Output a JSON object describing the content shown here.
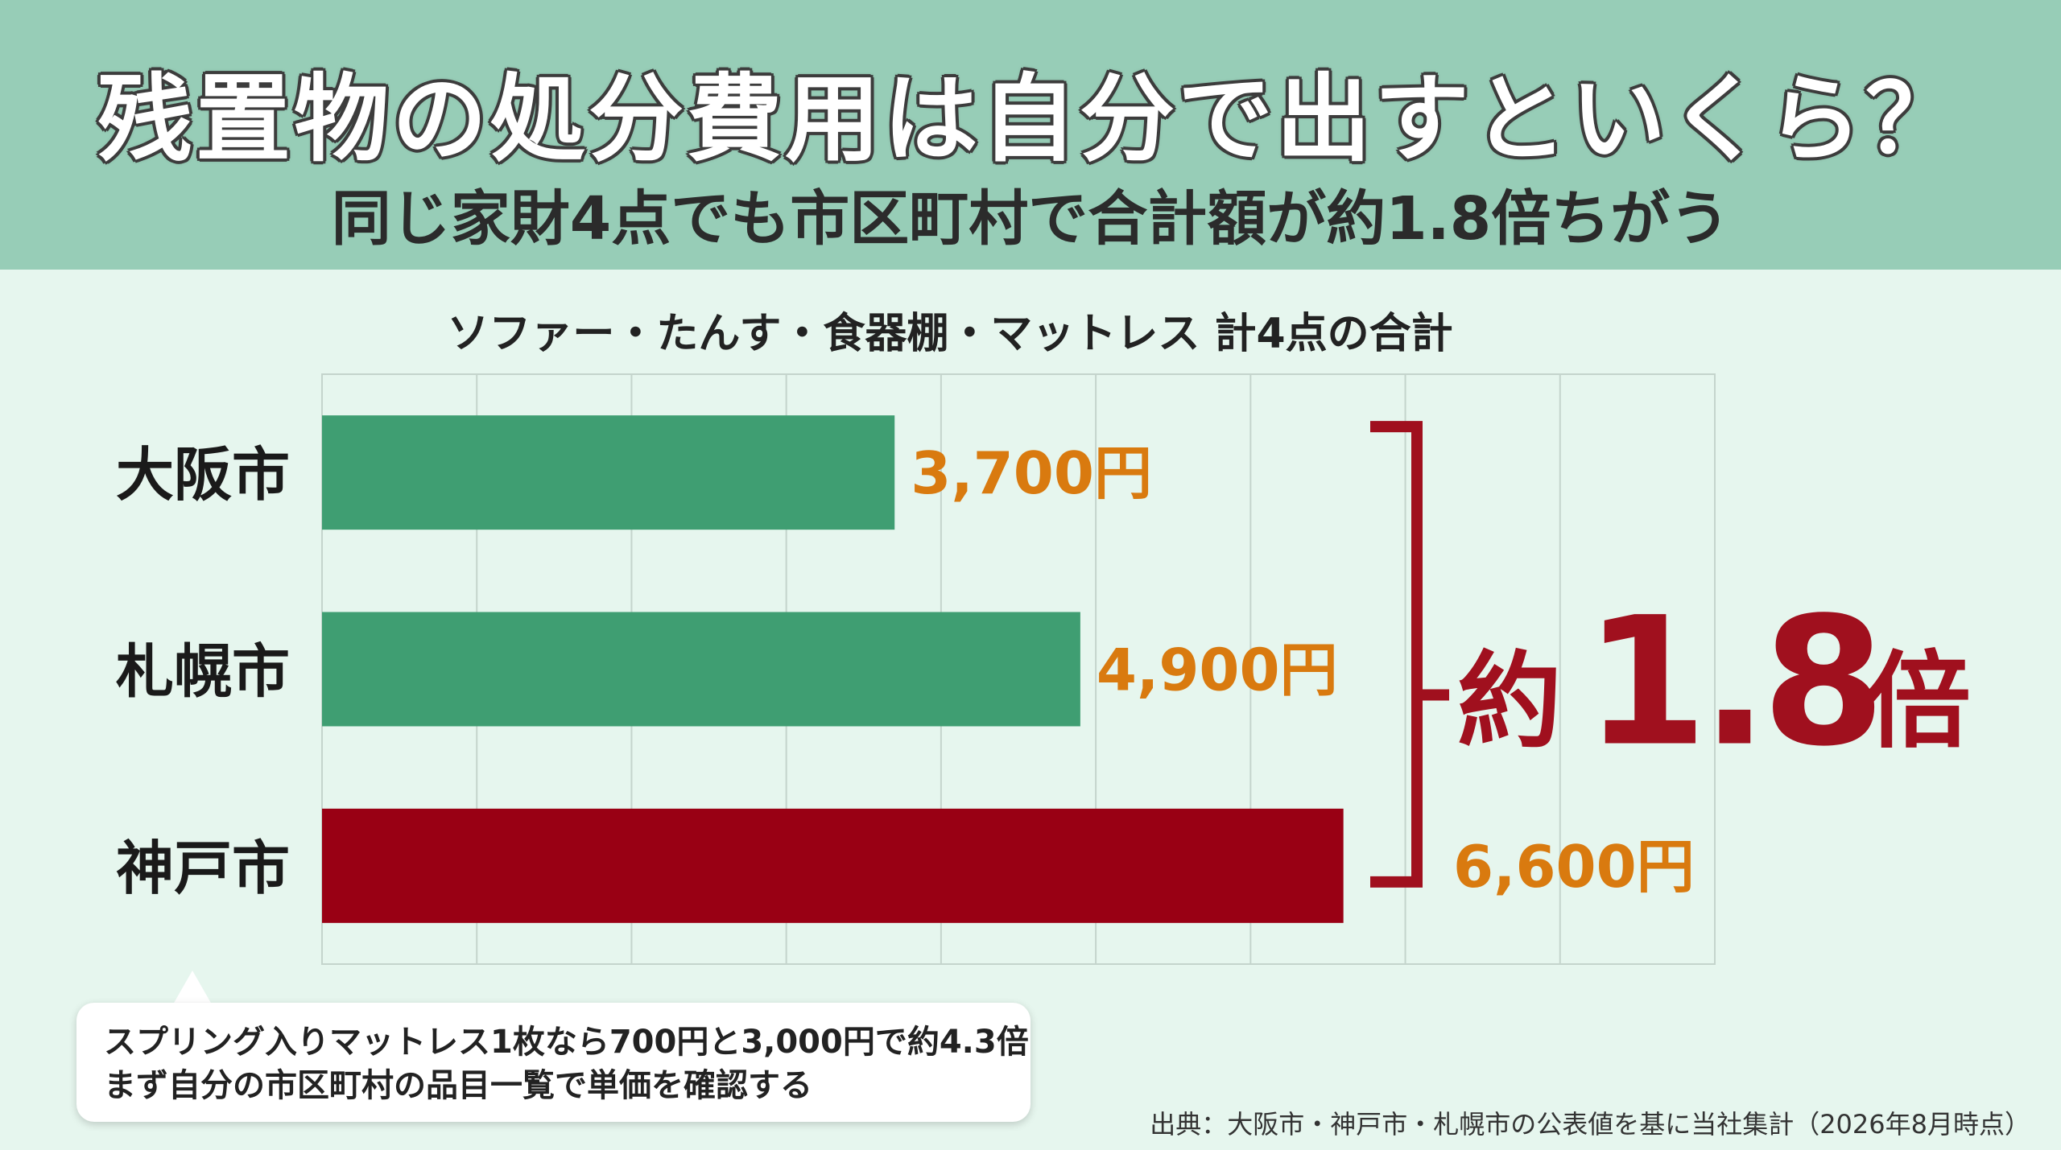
{
  "header": {
    "title": "残置物の処分費用は自分で出すといくら？",
    "subtitle": "同じ家財4点でも市区町村で合計額が約1.8倍ちがう"
  },
  "colors": {
    "header_bg": "#97cdb7",
    "page_bg": "#e6f6ee",
    "bar_green": "#3f9e72",
    "bar_red": "#990014",
    "value_orange": "#d97a0f",
    "accent_red": "#a0101e"
  },
  "chart_data": {
    "type": "bar",
    "orientation": "horizontal",
    "title": "ソファー・たんす・食器棚・マットレス 計4点の合計",
    "categories": [
      "大阪市",
      "札幌市",
      "神戸市"
    ],
    "values": [
      3700,
      4900,
      6600
    ],
    "value_labels": [
      "3,700円",
      "4,900円",
      "6,600円"
    ],
    "bar_colors": [
      "#3f9e72",
      "#3f9e72",
      "#990014"
    ],
    "xlim": [
      0,
      9000
    ],
    "grid_step": 1000,
    "grid": true,
    "legend": "none",
    "annotation": {
      "prefix": "約",
      "value": "1.8",
      "suffix": "倍",
      "brackets_categories": [
        "大阪市",
        "神戸市"
      ]
    }
  },
  "note": {
    "line1": "スプリング入りマットレス1枚なら700円と3,000円で約4.3倍",
    "line2": "まず自分の市区町村の品目一覧で単価を確認する"
  },
  "source": "出典：大阪市・神戸市・札幌市の公表値を基に当社集計（2026年8月時点）"
}
